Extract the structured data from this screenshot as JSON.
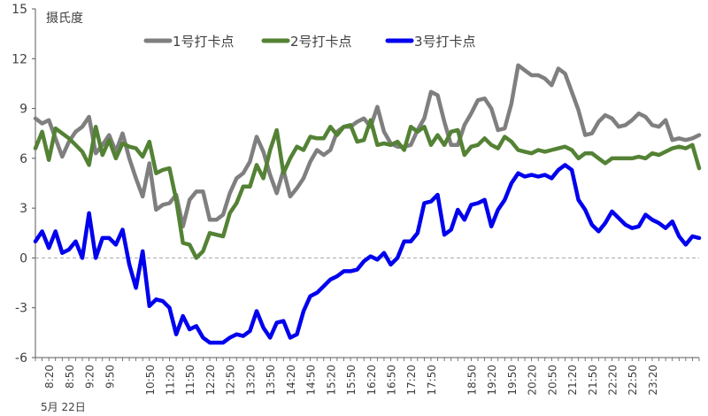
{
  "chart_data": {
    "type": "line",
    "ylabel": "摄氏度",
    "date_label": "5月 22日",
    "ylim": [
      -6,
      15
    ],
    "yticks": [
      -6,
      -3,
      0,
      3,
      6,
      9,
      12,
      15
    ],
    "x_start": "8:00",
    "x_step_minutes": 10,
    "xticks": [
      "8:20",
      "8:50",
      "9:20",
      "9:50",
      "10:50",
      "11:20",
      "11:50",
      "12:20",
      "12:50",
      "13:20",
      "13:50",
      "14:20",
      "14:50",
      "15:20",
      "15:50",
      "16:20",
      "16:50",
      "17:20",
      "17:50",
      "18:50",
      "19:20",
      "19:50",
      "20:20",
      "20:50",
      "21:20",
      "21:50",
      "22:20",
      "22:50",
      "23:20"
    ],
    "zero_line": true,
    "legend_position": "top",
    "series": [
      {
        "name": "1号打卡点",
        "color": "#7f7f7f",
        "values": [
          8.4,
          8.1,
          8.3,
          7.2,
          6.1,
          7.0,
          7.6,
          7.9,
          8.5,
          6.3,
          6.8,
          7.4,
          6.4,
          7.5,
          6.0,
          4.8,
          3.7,
          5.7,
          2.9,
          3.2,
          3.3,
          3.8,
          1.9,
          3.5,
          4.0,
          4.0,
          2.3,
          2.3,
          2.6,
          3.9,
          4.8,
          5.1,
          5.8,
          7.3,
          6.4,
          5.0,
          3.9,
          5.3,
          3.7,
          4.2,
          4.8,
          5.8,
          6.5,
          6.2,
          6.5,
          7.6,
          7.9,
          7.9,
          8.2,
          8.4,
          7.9,
          9.1,
          7.6,
          6.9,
          6.7,
          6.7,
          6.8,
          7.7,
          8.4,
          10.0,
          9.8,
          8.2,
          6.8,
          6.8,
          8.0,
          8.7,
          9.5,
          9.6,
          9.0,
          7.7,
          7.8,
          9.3,
          11.6,
          11.3,
          11.0,
          11.0,
          10.8,
          10.4,
          11.4,
          11.1,
          10.0,
          8.9,
          7.4,
          7.5,
          8.2,
          8.6,
          8.4,
          7.9,
          8.0,
          8.3,
          8.7,
          8.5,
          8.0,
          7.9,
          8.3,
          7.1,
          7.2,
          7.1,
          7.2,
          7.4
        ]
      },
      {
        "name": "2号打卡点",
        "color": "#548235",
        "values": [
          6.6,
          7.6,
          5.9,
          7.8,
          7.5,
          7.2,
          6.8,
          6.4,
          5.6,
          7.9,
          6.2,
          7.1,
          6.0,
          6.9,
          6.7,
          6.6,
          6.1,
          7.0,
          5.1,
          5.3,
          5.4,
          3.5,
          0.9,
          0.8,
          0.0,
          0.4,
          1.5,
          1.4,
          1.3,
          2.7,
          3.3,
          4.3,
          4.3,
          5.6,
          4.8,
          6.5,
          7.7,
          5.1,
          6.0,
          6.7,
          6.5,
          7.3,
          7.2,
          7.2,
          7.9,
          7.4,
          7.9,
          8.0,
          7.0,
          7.1,
          8.3,
          6.8,
          6.9,
          6.8,
          7.0,
          6.5,
          7.9,
          7.6,
          7.9,
          6.8,
          7.4,
          6.8,
          7.6,
          7.7,
          6.2,
          6.7,
          6.8,
          7.2,
          6.8,
          6.6,
          7.3,
          7.0,
          6.5,
          6.4,
          6.3,
          6.5,
          6.4,
          6.5,
          6.6,
          6.7,
          6.5,
          6.0,
          6.3,
          6.3,
          6.0,
          5.7,
          6.0,
          6.0,
          6.0,
          6.0,
          6.1,
          6.0,
          6.3,
          6.2,
          6.4,
          6.6,
          6.7,
          6.6,
          6.8,
          5.4
        ]
      },
      {
        "name": "3号打卡点",
        "color": "#0000ee",
        "values": [
          1.0,
          1.6,
          0.6,
          1.6,
          0.3,
          0.5,
          1.0,
          0.0,
          2.7,
          0.0,
          1.2,
          1.2,
          0.8,
          1.7,
          -0.4,
          -1.8,
          0.4,
          -2.9,
          -2.5,
          -2.6,
          -3.0,
          -4.6,
          -3.5,
          -4.3,
          -4.1,
          -4.8,
          -5.1,
          -5.1,
          -5.1,
          -4.8,
          -4.6,
          -4.7,
          -4.4,
          -3.2,
          -4.2,
          -4.8,
          -3.9,
          -3.8,
          -4.8,
          -4.6,
          -3.2,
          -2.3,
          -2.1,
          -1.7,
          -1.3,
          -1.1,
          -0.8,
          -0.8,
          -0.7,
          -0.2,
          0.1,
          -0.1,
          0.3,
          -0.4,
          0.0,
          1.0,
          1.0,
          1.5,
          3.3,
          3.4,
          3.8,
          1.4,
          1.7,
          2.9,
          2.3,
          3.2,
          3.3,
          3.5,
          1.9,
          2.9,
          3.5,
          4.5,
          5.1,
          4.9,
          5.0,
          4.9,
          5.0,
          4.8,
          5.3,
          5.6,
          5.3,
          3.5,
          2.9,
          2.0,
          1.6,
          2.1,
          2.8,
          2.4,
          2.0,
          1.8,
          1.9,
          2.6,
          2.3,
          2.1,
          1.8,
          2.2,
          1.3,
          0.8,
          1.3,
          1.2
        ]
      }
    ]
  }
}
